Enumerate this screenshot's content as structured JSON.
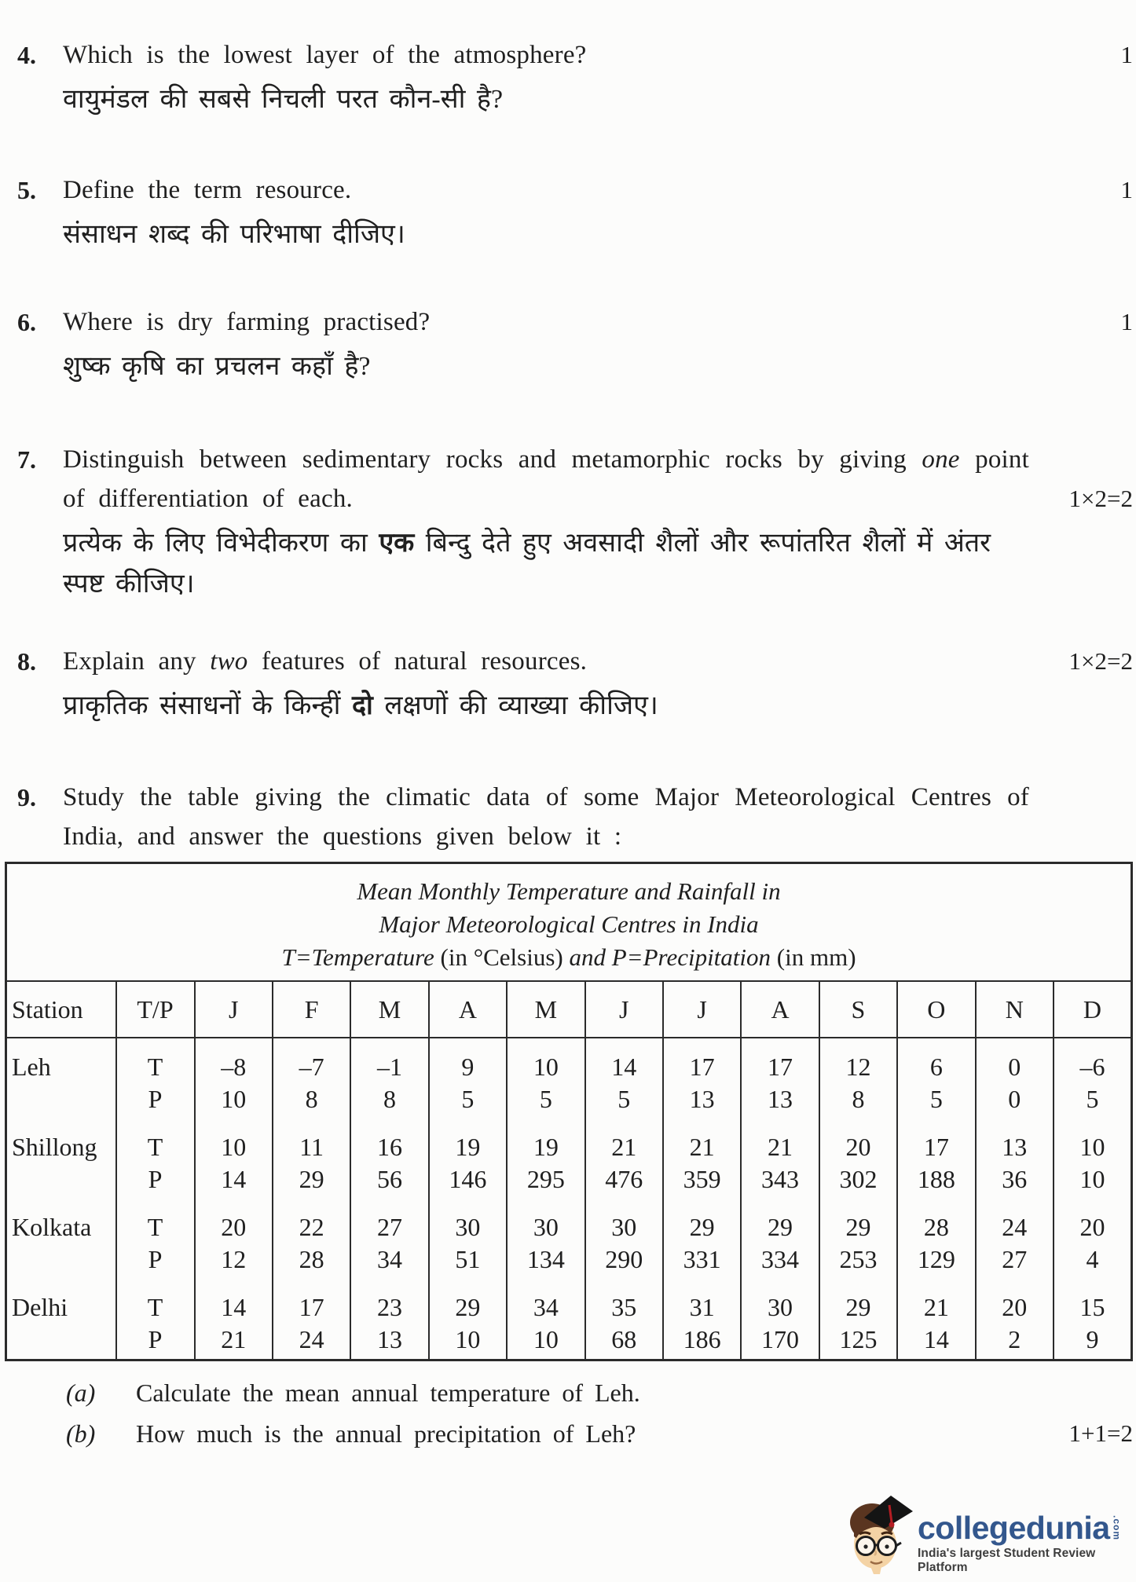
{
  "questions": {
    "q4": {
      "num": "4.",
      "en": "Which is the lowest layer of the atmosphere?",
      "hi": "वायुमंडल की सबसे निचली परत कौन-सी है?",
      "marks": "1"
    },
    "q5": {
      "num": "5.",
      "en": "Define the term resource.",
      "hi": "संसाधन शब्द की परिभाषा दीजिए।",
      "marks": "1"
    },
    "q6": {
      "num": "6.",
      "en": "Where is dry farming practised?",
      "hi": "शुष्क कृषि का प्रचलन कहाँ है?",
      "marks": "1"
    },
    "q7": {
      "num": "7.",
      "en_before": "Distinguish between sedimentary rocks and metamorphic rocks by giving",
      "en_italic": "one",
      "en_after": "point of differentiation of each.",
      "hi_before": "प्रत्येक के लिए विभेदीकरण का",
      "hi_bold": "एक",
      "hi_after": "बिन्दु देते हुए अवसादी शैलों और रूपांतरित शैलों में अंतर स्पष्ट कीजिए।",
      "marks": "1×2=2"
    },
    "q8": {
      "num": "8.",
      "en_before": "Explain any",
      "en_italic": "two",
      "en_after": "features of natural resources.",
      "hi_before": "प्राकृतिक संसाधनों के किन्हीं",
      "hi_bold": "दो",
      "hi_after": "लक्षणों की व्याख्या कीजिए।",
      "marks": "1×2=2"
    },
    "q9": {
      "num": "9.",
      "en": "Study the table giving the climatic data of some Major Meteorological Centres of India, and answer the questions given below it :"
    }
  },
  "table": {
    "title_line1": "Mean Monthly Temperature and Rainfall in",
    "title_line2": "Major Meteorological Centres in India",
    "title_line3_italic1": "T=Temperature",
    "title_line3_plain1": "(in °Celsius)",
    "title_line3_italic2": "and P=Precipitation",
    "title_line3_plain2": "(in mm)",
    "columns": [
      "Station",
      "T/P",
      "J",
      "F",
      "M",
      "A",
      "M",
      "J",
      "J",
      "A",
      "S",
      "O",
      "N",
      "D"
    ],
    "row_labels": [
      "T",
      "P"
    ],
    "rows": [
      {
        "station": "Leh",
        "T": [
          "–8",
          "–7",
          "–1",
          "9",
          "10",
          "14",
          "17",
          "17",
          "12",
          "6",
          "0",
          "–6"
        ],
        "P": [
          "10",
          "8",
          "8",
          "5",
          "5",
          "5",
          "13",
          "13",
          "8",
          "5",
          "0",
          "5"
        ]
      },
      {
        "station": "Shillong",
        "T": [
          "10",
          "11",
          "16",
          "19",
          "19",
          "21",
          "21",
          "21",
          "20",
          "17",
          "13",
          "10"
        ],
        "P": [
          "14",
          "29",
          "56",
          "146",
          "295",
          "476",
          "359",
          "343",
          "302",
          "188",
          "36",
          "10"
        ]
      },
      {
        "station": "Kolkata",
        "T": [
          "20",
          "22",
          "27",
          "30",
          "30",
          "30",
          "29",
          "29",
          "29",
          "28",
          "24",
          "20"
        ],
        "P": [
          "12",
          "28",
          "34",
          "51",
          "134",
          "290",
          "331",
          "334",
          "253",
          "129",
          "27",
          "4"
        ]
      },
      {
        "station": "Delhi",
        "T": [
          "14",
          "17",
          "23",
          "29",
          "34",
          "35",
          "31",
          "30",
          "29",
          "21",
          "20",
          "15"
        ],
        "P": [
          "21",
          "24",
          "13",
          "10",
          "10",
          "68",
          "186",
          "170",
          "125",
          "14",
          "2",
          "9"
        ]
      }
    ]
  },
  "sub_questions": {
    "a_label": "(a)",
    "a_text": "Calculate the mean annual temperature of Leh.",
    "b_label": "(b)",
    "b_text": "How much is the annual precipitation of Leh?",
    "marks": "1+1=2"
  },
  "logo": {
    "brand": "collegedunia",
    "tld": ".com",
    "tagline": "India's largest Student Review Platform",
    "brand_color": "#33578d",
    "tagline_color": "#3e3e3e"
  }
}
